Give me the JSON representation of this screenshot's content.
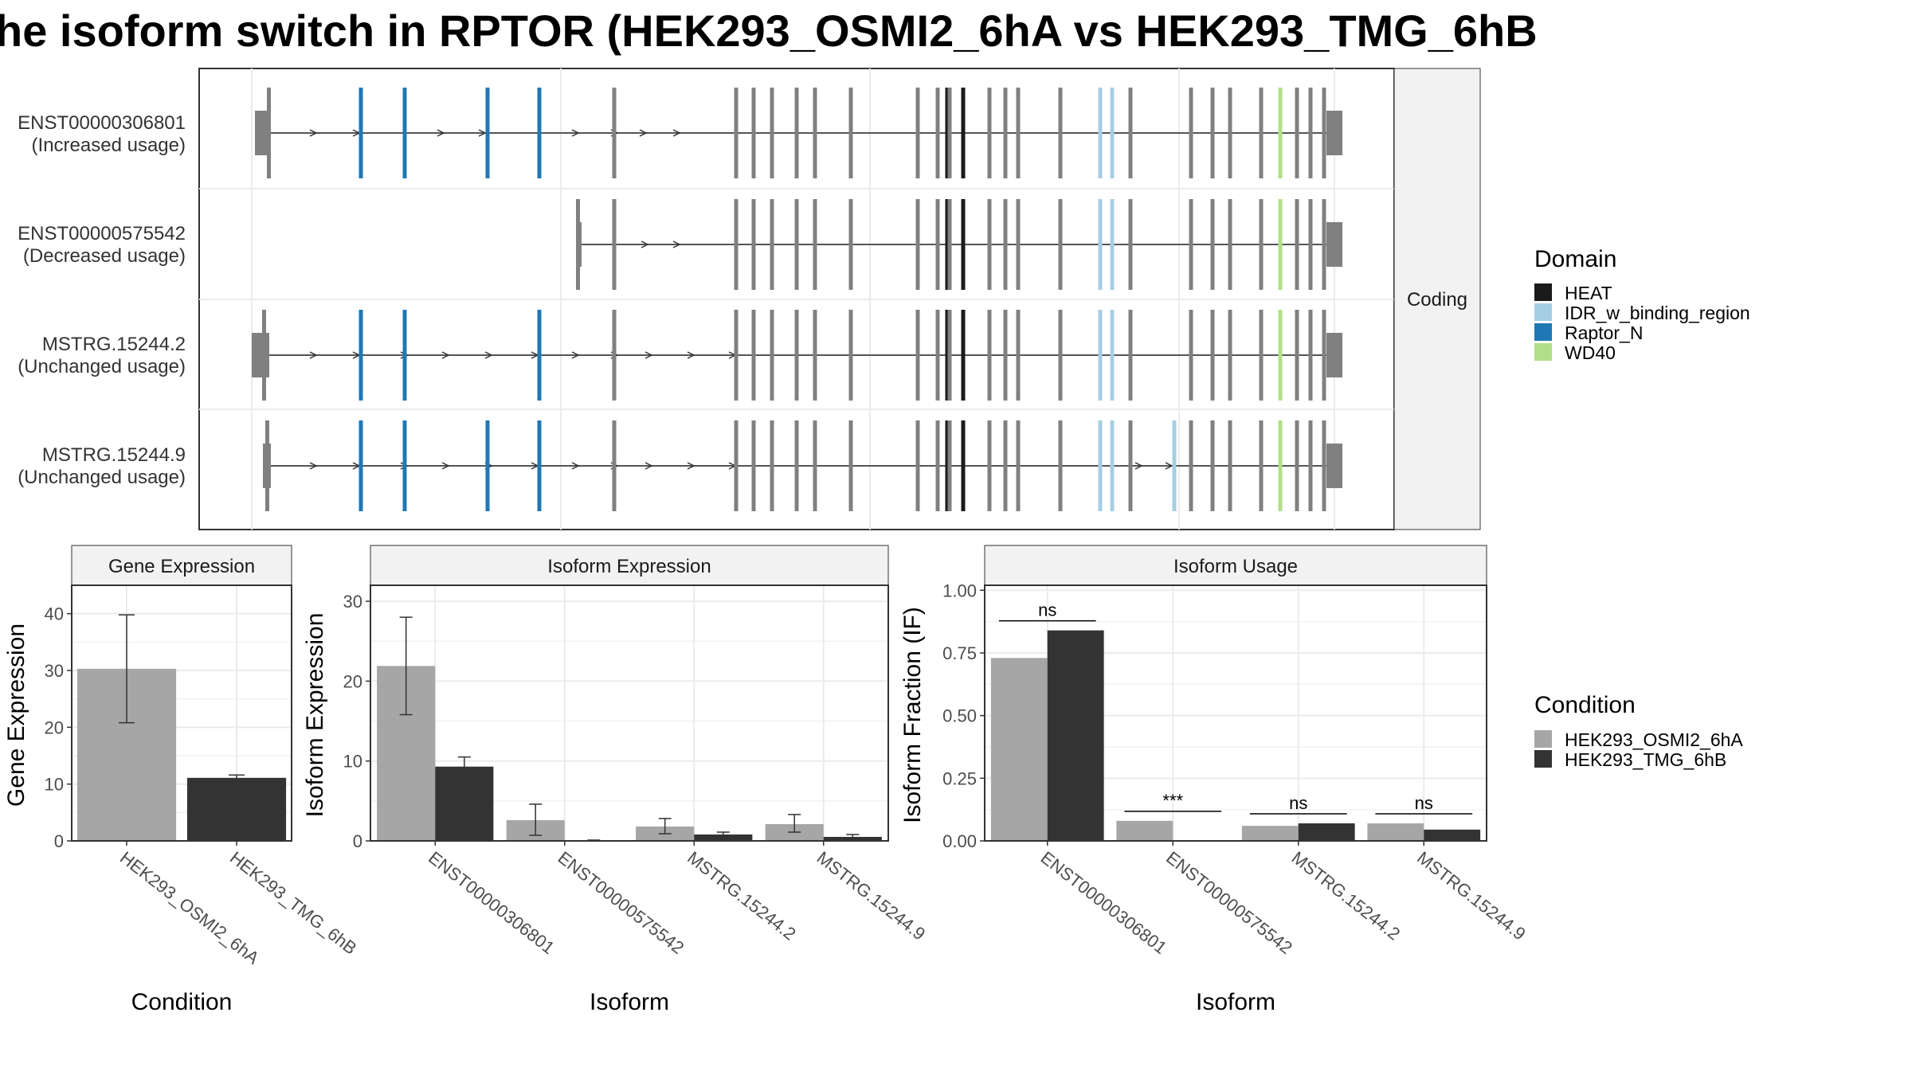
{
  "title": "he isoform switch in RPTOR (HEK293_OSMI2_6hA vs HEK293_TMG_6hB",
  "colors": {
    "exon": "#808080",
    "domains": {
      "HEAT": "#1a1a1a",
      "IDR_w_binding_region": "#a6cee3",
      "Raptor_N": "#1f78b4",
      "WD40": "#b2df8a"
    },
    "conditions": [
      "#a6a6a6",
      "#333333"
    ]
  },
  "structure": {
    "facet_label": "Coding",
    "transcripts": [
      {
        "name": "ENST00000306801",
        "usage": "(Increased usage)"
      },
      {
        "name": "ENST00000575542",
        "usage": "(Decreased usage)"
      },
      {
        "name": "MSTRG.15244.2",
        "usage": "(Unchanged usage)"
      },
      {
        "name": "MSTRG.15244.9",
        "usage": "(Unchanged usage)"
      }
    ]
  },
  "legend": {
    "domain_title": "Domain",
    "domains": [
      "HEAT",
      "IDR_w_binding_region",
      "Raptor_N",
      "WD40"
    ],
    "condition_title": "Condition",
    "conditions": [
      "HEK293_OSMI2_6hA",
      "HEK293_TMG_6hB"
    ]
  },
  "chart_data": [
    {
      "type": "bar",
      "title": "Gene Expression",
      "xlabel": "Condition",
      "ylabel": "Gene Expression",
      "categories": [
        "HEK293_OSMI2_6hA",
        "HEK293_TMG_6hB"
      ],
      "values": [
        30.3,
        11.1
      ],
      "error_low": [
        20.8,
        10.6
      ],
      "error_high": [
        39.8,
        11.6
      ],
      "ylim": [
        0,
        45
      ],
      "yticks": [
        0,
        10,
        20,
        30,
        40
      ],
      "grid": true
    },
    {
      "type": "bar",
      "title": "Isoform Expression",
      "xlabel": "Isoform",
      "ylabel": "Isoform Expression",
      "categories": [
        "ENST00000306801",
        "ENST00000575542",
        "MSTRG.15244.2",
        "MSTRG.15244.9"
      ],
      "series": [
        {
          "name": "HEK293_OSMI2_6hA",
          "values": [
            21.9,
            2.6,
            1.8,
            2.1
          ],
          "error_low": [
            15.8,
            0.7,
            0.9,
            1.1
          ],
          "error_high": [
            28.0,
            4.6,
            2.8,
            3.3
          ]
        },
        {
          "name": "HEK293_TMG_6hB",
          "values": [
            9.3,
            0.05,
            0.8,
            0.5
          ],
          "error_low": [
            8.1,
            0.0,
            0.4,
            0.3
          ],
          "error_high": [
            10.5,
            0.1,
            1.1,
            0.8
          ]
        }
      ],
      "ylim": [
        0,
        32
      ],
      "yticks": [
        0,
        10,
        20,
        30
      ],
      "grid": true
    },
    {
      "type": "bar",
      "title": "Isoform Usage",
      "xlabel": "Isoform",
      "ylabel": "Isoform Fraction (IF)",
      "categories": [
        "ENST00000306801",
        "ENST00000575542",
        "MSTRG.15244.2",
        "MSTRG.15244.9"
      ],
      "series": [
        {
          "name": "HEK293_OSMI2_6hA",
          "values": [
            0.73,
            0.08,
            0.06,
            0.07
          ]
        },
        {
          "name": "HEK293_TMG_6hB",
          "values": [
            0.84,
            0.0,
            0.07,
            0.045
          ]
        }
      ],
      "significance": [
        "ns",
        "***",
        "ns",
        "ns"
      ],
      "ylim": [
        0,
        1.02
      ],
      "yticks": [
        "0.00",
        "0.25",
        "0.50",
        "0.75",
        "1.00"
      ],
      "grid": true
    }
  ]
}
